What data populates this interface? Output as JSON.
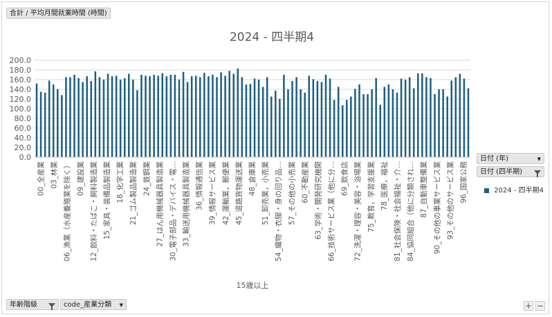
{
  "field_buttons": {
    "value_field": "合計 / 平均月間就業時間 (時間)",
    "filter_year": "日付 (年)",
    "filter_quarter": "日付 (四半期)",
    "axis_field_1": "年齢階級",
    "axis_field_2": "code_産業分類"
  },
  "zoom": {
    "plus": "+",
    "minus": "−"
  },
  "colors": {
    "bar": "#1f5f82",
    "grid": "#d9d9d9",
    "axis_text": "#595959"
  },
  "chart_data": {
    "type": "bar",
    "title": "2024 - 四半期4",
    "xlabel": "15歳以上",
    "ylabel": "",
    "ylim": [
      0,
      200
    ],
    "yticks": [
      "0.0",
      "20.0",
      "40.0",
      "60.0",
      "80.0",
      "100.0",
      "120.0",
      "140.0",
      "160.0",
      "180.0",
      "200.0"
    ],
    "grid": true,
    "legend_position": "right",
    "category_labels": [
      "00_全産業",
      "03_林業",
      "06_漁業（水産養殖業を除く）",
      "09_建設業",
      "12_飲料・たばこ・飼料製造業",
      "15_家具・装備品製造業",
      "18_化学工業",
      "21_ゴム製品製造業",
      "24_鉄鋼業",
      "27_はん用機械器具製造業",
      "30_電子部品・デバイス・電…",
      "33_輸送用機械器具製造業",
      "36_情報通信業",
      "39_情報サービス業",
      "42_運輸業，郵便業",
      "45_道路貨物運送業",
      "48_倉庫業",
      "51_卸売業，小売業",
      "54_織物・衣服・身の回り品…",
      "57_その他の小売業",
      "60_不動産業",
      "63_学術・開発研究機関",
      "66_技術サービス業（他に分…",
      "69_飲食店",
      "72_洗濯・理容・美容・浴場業",
      "75_教育，学習支援業",
      "78_医療，福祉",
      "81_社会保険・社会福祉・介…",
      "84_協同組合（他に分類され…",
      "87_自動車整備業",
      "90_その他の事業サービス業",
      "93_その他のサービス業",
      "96_国家公務"
    ],
    "series": [
      {
        "name": "2024 - 四半期4",
        "values": [
          152,
          135,
          133,
          158,
          150,
          140,
          128,
          165,
          165,
          170,
          163,
          155,
          167,
          157,
          177,
          165,
          160,
          172,
          167,
          168,
          160,
          163,
          172,
          160,
          138,
          170,
          168,
          167,
          170,
          168,
          173,
          167,
          170,
          170,
          160,
          176,
          155,
          167,
          168,
          165,
          174,
          167,
          170,
          165,
          175,
          168,
          178,
          172,
          183,
          165,
          150,
          151,
          162,
          160,
          145,
          165,
          125,
          137,
          120,
          170,
          140,
          157,
          165,
          140,
          133,
          168,
          161,
          157,
          155,
          170,
          162,
          118,
          145,
          107,
          118,
          125,
          141,
          150,
          130,
          130,
          140,
          163,
          108,
          145,
          150,
          140,
          133,
          162,
          160,
          165,
          142,
          173,
          173,
          165,
          163,
          130,
          140,
          140,
          125,
          158,
          165,
          172,
          162,
          142
        ]
      }
    ]
  }
}
